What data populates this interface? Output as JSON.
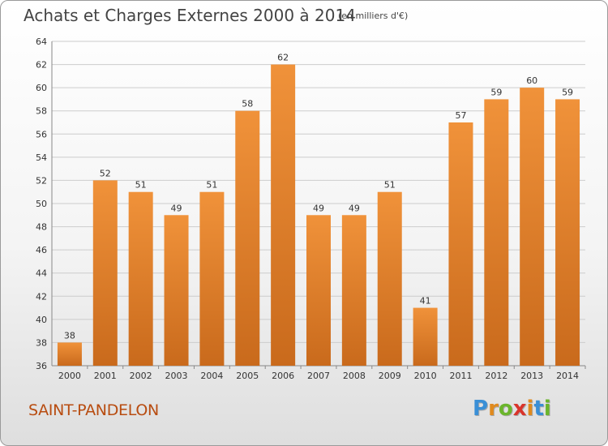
{
  "title": "Achats et Charges Externes 2000 à 2014",
  "unit": "(en milliers d'€)",
  "place": "SAINT-PANDELON",
  "logo": {
    "letters": [
      "P",
      "r",
      "o",
      "x",
      "i",
      "t",
      "i"
    ],
    "colors": [
      "#3a8fd6",
      "#e08a1e",
      "#6bb52c",
      "#d9342b",
      "#e08a1e",
      "#3a8fd6",
      "#6bb52c"
    ]
  },
  "colors": {
    "bar": "#f0923a",
    "bar_dark": "#c96a1c",
    "grid": "#cccccc",
    "axis": "#888888"
  },
  "chart_data": {
    "type": "bar",
    "title": "Achats et Charges Externes 2000 à 2014",
    "subtitle": "(en milliers d'€)",
    "xlabel": "",
    "ylabel": "",
    "categories": [
      "2000",
      "2001",
      "2002",
      "2003",
      "2004",
      "2005",
      "2006",
      "2007",
      "2008",
      "2009",
      "2010",
      "2011",
      "2012",
      "2013",
      "2014"
    ],
    "values": [
      38,
      52,
      51,
      49,
      51,
      58,
      62,
      49,
      49,
      51,
      41,
      57,
      59,
      60,
      59
    ],
    "ylim": [
      36,
      64
    ],
    "yticks": [
      36,
      38,
      40,
      42,
      44,
      46,
      48,
      50,
      52,
      54,
      56,
      58,
      60,
      62,
      64
    ],
    "grid": true,
    "legend": "none"
  }
}
